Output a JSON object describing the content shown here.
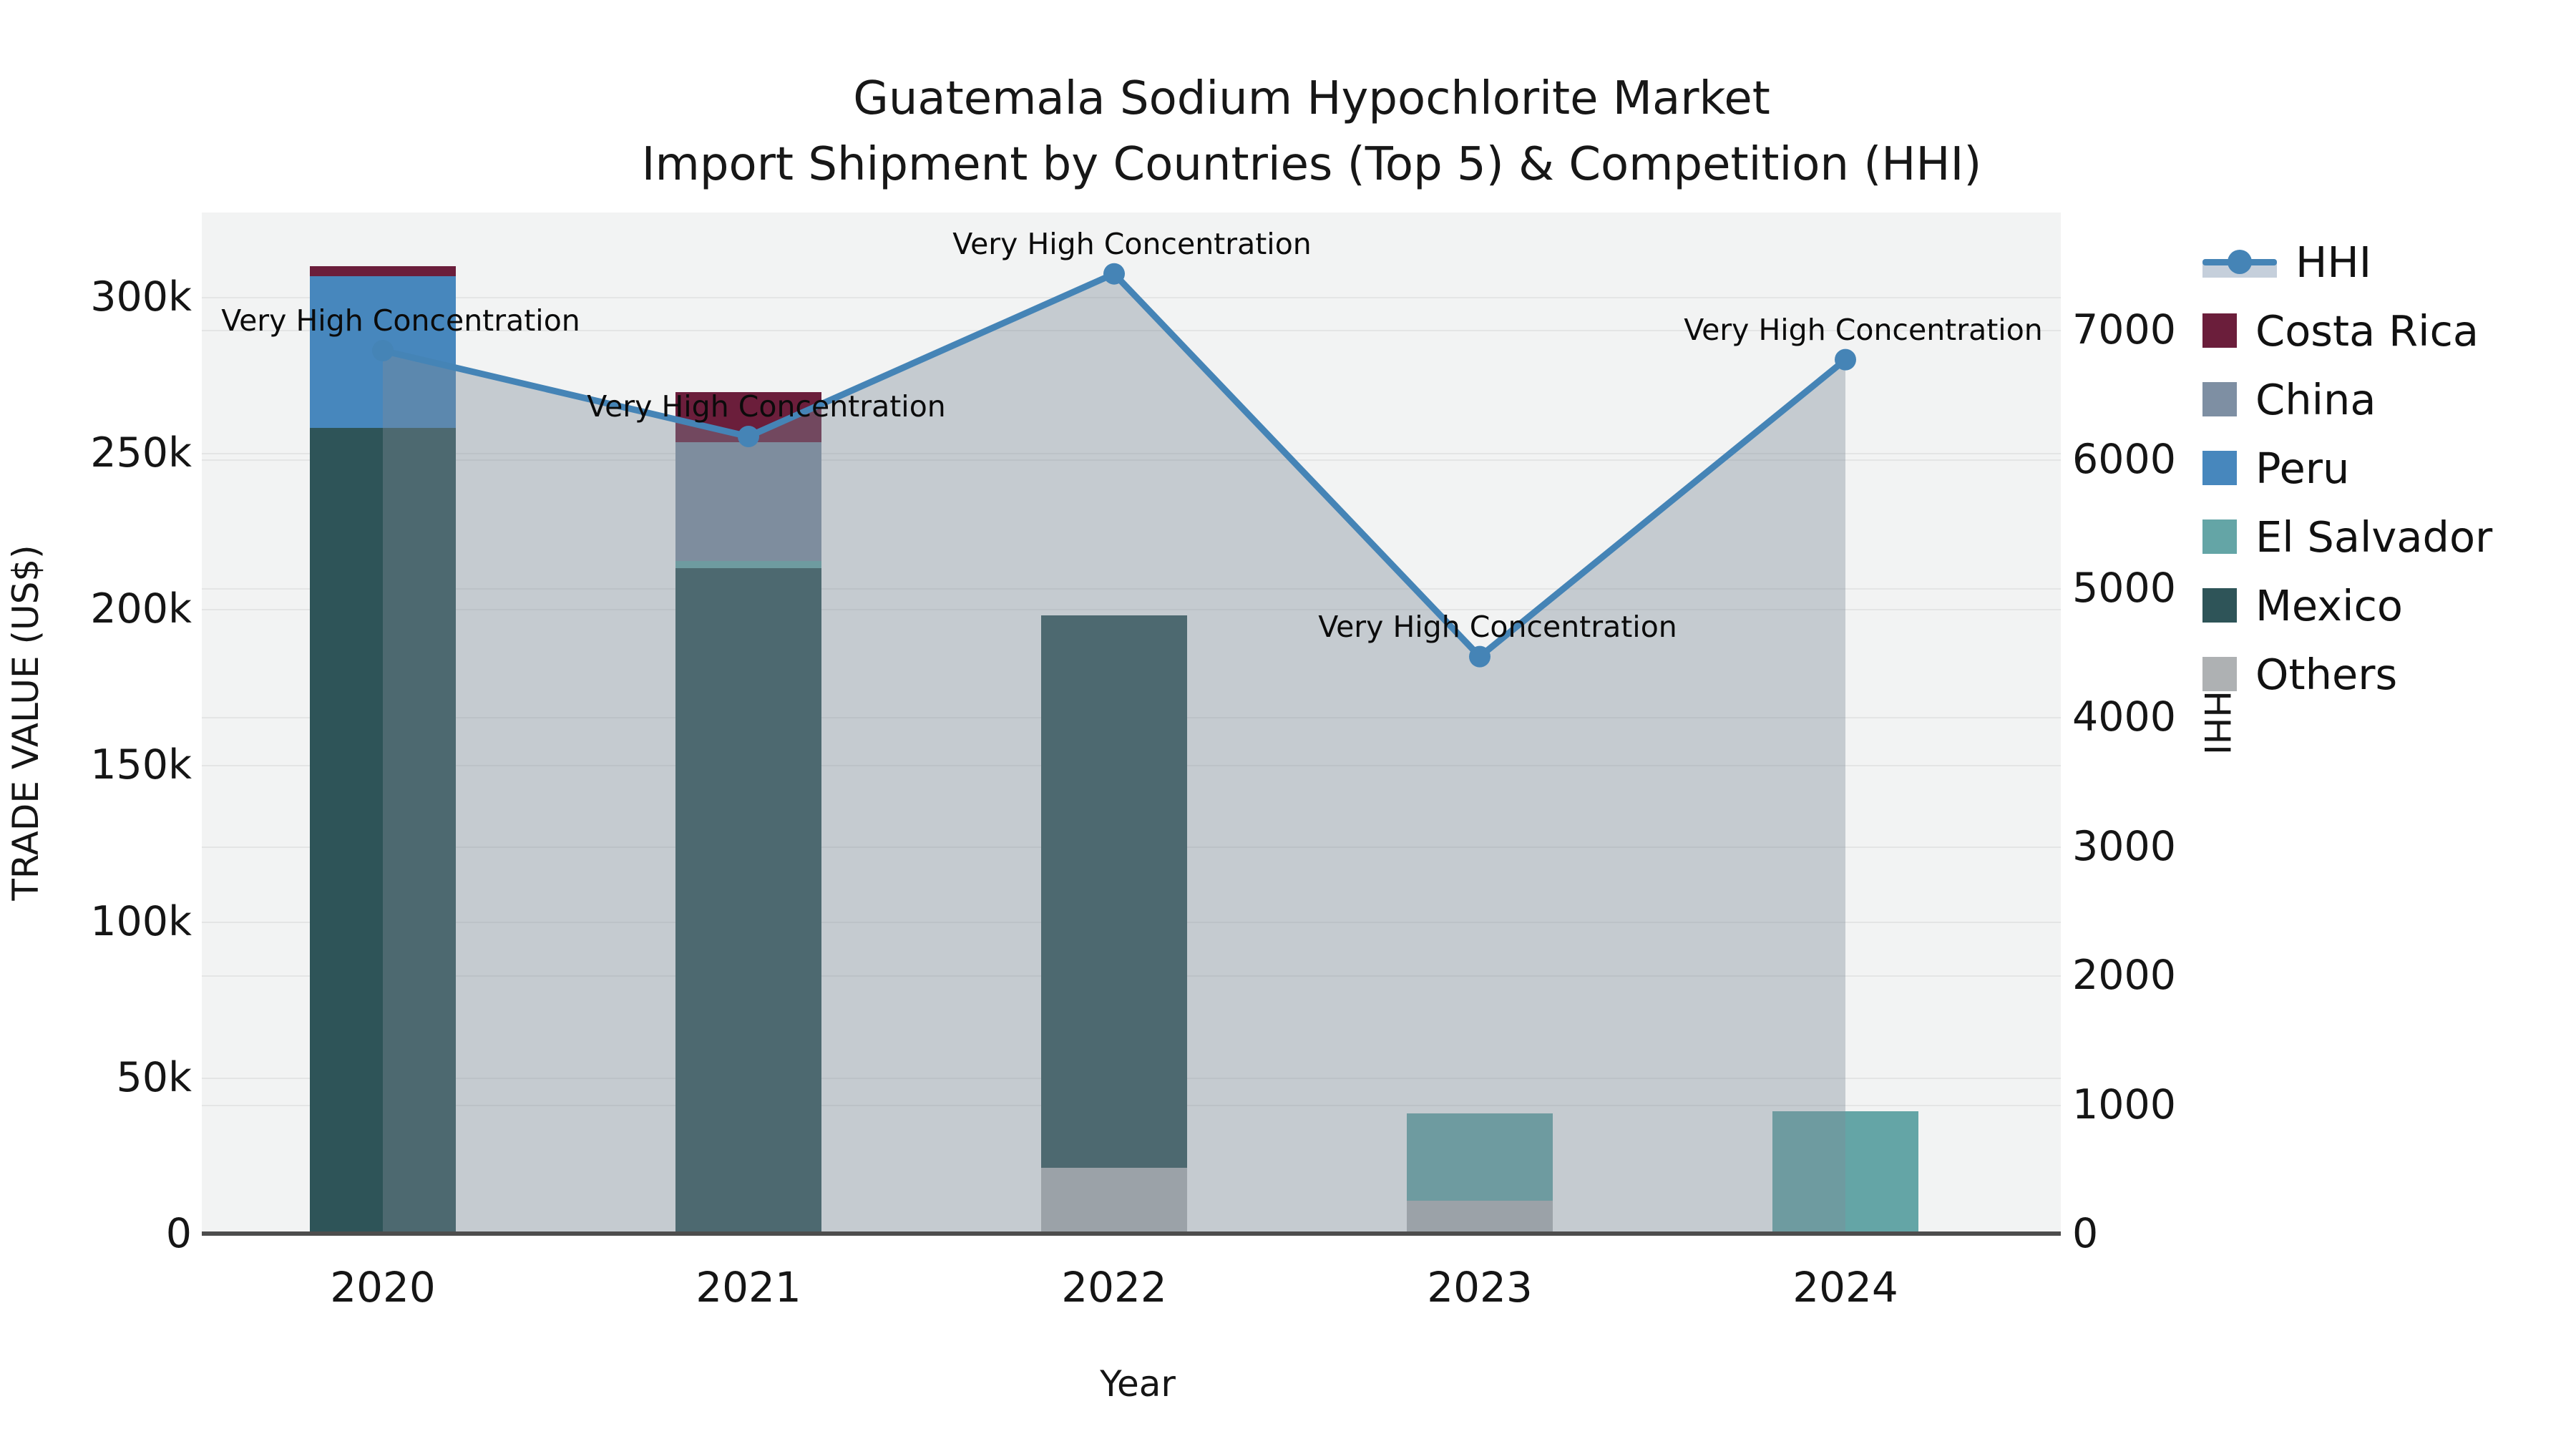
{
  "title": {
    "line1": "Guatemala Sodium Hypochlorite Market",
    "line2": "Import Shipment by Countries (Top 5) & Competition (HHI)"
  },
  "axes": {
    "x": {
      "title": "Year",
      "ticks": [
        "2020",
        "2021",
        "2022",
        "2023",
        "2024"
      ]
    },
    "y_left": {
      "title": "TRADE VALUE (US$)",
      "ticks": [
        "0",
        "50k",
        "100k",
        "150k",
        "200k",
        "250k",
        "300k"
      ]
    },
    "y_right": {
      "title": "HHI",
      "ticks": [
        "0",
        "1000",
        "2000",
        "3000",
        "4000",
        "5000",
        "6000",
        "7000"
      ]
    }
  },
  "legend": {
    "items": [
      {
        "label": "HHI",
        "type": "line",
        "color": "#4584b6",
        "band": "#c5cfdb"
      },
      {
        "label": "Costa Rica",
        "type": "swatch",
        "color": "#6b1e3b"
      },
      {
        "label": "China",
        "type": "swatch",
        "color": "#7e8fa3"
      },
      {
        "label": "Peru",
        "type": "swatch",
        "color": "#4787bd"
      },
      {
        "label": "El Salvador",
        "type": "swatch",
        "color": "#64a5a6"
      },
      {
        "label": "Mexico",
        "type": "swatch",
        "color": "#2e5458"
      },
      {
        "label": "Others",
        "type": "swatch",
        "color": "#aeb1b3"
      }
    ]
  },
  "chart_data": {
    "type": "combo-stacked-bar-line",
    "categories": [
      "2020",
      "2021",
      "2022",
      "2023",
      "2024"
    ],
    "bar_series_bottom_to_top": [
      {
        "name": "Others",
        "color": "#aeb1b3",
        "values": [
          0,
          0,
          21000,
          10500,
          0
        ]
      },
      {
        "name": "Mexico",
        "color": "#2e5458",
        "values": [
          258000,
          213200,
          177000,
          0,
          0
        ]
      },
      {
        "name": "El Salvador",
        "color": "#64a5a6",
        "values": [
          0,
          2300,
          0,
          28000,
          39200
        ]
      },
      {
        "name": "China",
        "color": "#7e8fa3",
        "values": [
          0,
          38000,
          0,
          0,
          0
        ]
      },
      {
        "name": "Peru",
        "color": "#4787bd",
        "values": [
          48500,
          0,
          0,
          0,
          0
        ]
      },
      {
        "name": "Costa Rica",
        "color": "#6b1e3b",
        "values": [
          3200,
          16000,
          0,
          0,
          0
        ]
      }
    ],
    "line_series": {
      "name": "HHI",
      "color": "#4584b6",
      "area_color": "#7e8b97",
      "area_opacity": 0.39,
      "values": [
        6840,
        6175,
        7435,
        4470,
        6770
      ],
      "annotations": [
        "Very High Concentration",
        "Very High Concentration",
        "Very High Concentration",
        "Very High Concentration",
        "Very High Concentration"
      ]
    },
    "title": "Guatemala Sodium Hypochlorite Market — Import Shipment by Countries (Top 5) & Competition (HHI)",
    "xlabel": "Year",
    "ylabel_left": "TRADE VALUE (US$)",
    "ylabel_right": "HHI",
    "ylim_left": [
      0,
      327000
    ],
    "ylim_right": [
      0,
      7910
    ],
    "grid": true,
    "legend_position": "right"
  },
  "colors": {
    "plot_background": "#f2f3f3",
    "gridline": "#e4e5e5",
    "axis_line": "#4d4d4d",
    "text": "#151515"
  }
}
